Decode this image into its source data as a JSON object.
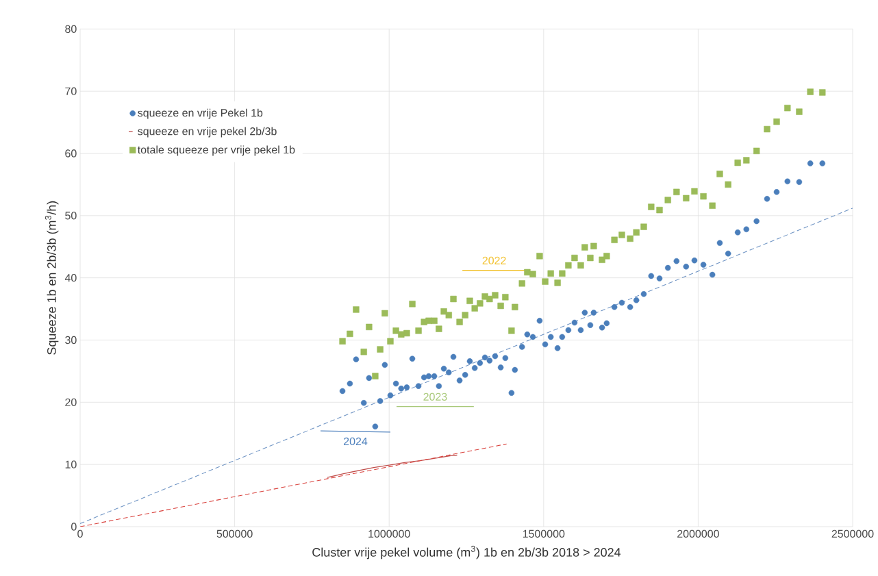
{
  "chart_data": {
    "type": "scatter",
    "xlabel": "Cluster vrije pekel volume (m$^{3}$) 1b en 2b/3b 2018 > 2024",
    "ylabel": "Squeeze 1b en 2b/3b (m$^{3}$/h)",
    "xlim": [
      0,
      2500000
    ],
    "xticks": [
      0,
      500000,
      1000000,
      1500000,
      2000000,
      2500000
    ],
    "ylim": [
      0,
      80
    ],
    "yticks": [
      0,
      10,
      20,
      30,
      40,
      50,
      60,
      70,
      80
    ],
    "grid": true,
    "legend": "top left",
    "series": [
      {
        "name": "squeeze en vrije Pekel 1b",
        "marker": "circle",
        "color": "#4a7ebb",
        "x": [
          849000,
          873000,
          893000,
          918000,
          935000,
          955000,
          971000,
          986000,
          1004000,
          1022000,
          1039000,
          1057000,
          1075000,
          1095000,
          1113000,
          1128000,
          1146000,
          1161000,
          1177000,
          1193000,
          1208000,
          1228000,
          1246000,
          1261000,
          1277000,
          1294000,
          1310000,
          1325000,
          1343000,
          1361000,
          1376000,
          1396000,
          1407000,
          1430000,
          1447000,
          1465000,
          1487000,
          1505000,
          1523000,
          1545000,
          1560000,
          1580000,
          1600000,
          1620000,
          1633000,
          1651000,
          1662000,
          1689000,
          1704000,
          1729000,
          1753000,
          1780000,
          1800000,
          1824000,
          1848000,
          1875000,
          1902000,
          1930000,
          1961000,
          1988000,
          2017000,
          2046000,
          2070000,
          2097000,
          2128000,
          2156000,
          2189000,
          2223000,
          2254000,
          2289000,
          2327000,
          2363000,
          2402000
        ],
        "values": [
          21.8,
          23.0,
          26.9,
          19.9,
          23.9,
          16.1,
          20.2,
          26.0,
          21.1,
          23.0,
          22.2,
          22.4,
          27.0,
          22.6,
          24.0,
          24.2,
          24.2,
          22.6,
          25.4,
          24.8,
          27.3,
          23.5,
          24.4,
          26.6,
          25.5,
          26.3,
          27.2,
          26.7,
          27.4,
          25.6,
          27.1,
          21.5,
          25.2,
          28.9,
          30.9,
          30.5,
          33.1,
          29.3,
          30.5,
          28.7,
          30.5,
          31.6,
          32.8,
          31.6,
          34.4,
          32.4,
          34.4,
          32.0,
          32.7,
          35.3,
          36.0,
          35.3,
          36.4,
          37.4,
          40.3,
          39.9,
          41.6,
          42.7,
          41.8,
          42.8,
          42.1,
          40.5,
          45.6,
          43.9,
          47.3,
          47.8,
          49.1,
          52.7,
          53.8,
          55.5,
          55.4,
          58.4,
          58.4
        ]
      },
      {
        "name": "squeeze en vrije pekel 2b/3b",
        "type": "line",
        "marker": "none",
        "line_style": "solid",
        "color": "#c0504d",
        "x": [
          800000,
          850000,
          900000,
          950000,
          1000000,
          1050000,
          1100000,
          1150000,
          1200000,
          1220000
        ],
        "values": [
          7.9,
          8.5,
          9.0,
          9.5,
          9.9,
          10.3,
          10.6,
          11.0,
          11.4,
          11.5
        ]
      },
      {
        "name": "totale squeeze per vrije pekel 1b",
        "marker": "square",
        "color": "#9bbb59",
        "x": [
          849000,
          873000,
          893000,
          918000,
          935000,
          955000,
          971000,
          986000,
          1004000,
          1022000,
          1039000,
          1057000,
          1075000,
          1095000,
          1113000,
          1128000,
          1146000,
          1161000,
          1177000,
          1193000,
          1208000,
          1228000,
          1246000,
          1261000,
          1277000,
          1294000,
          1310000,
          1325000,
          1343000,
          1361000,
          1376000,
          1396000,
          1407000,
          1430000,
          1447000,
          1465000,
          1487000,
          1505000,
          1523000,
          1545000,
          1560000,
          1580000,
          1600000,
          1620000,
          1633000,
          1651000,
          1662000,
          1689000,
          1704000,
          1729000,
          1753000,
          1780000,
          1800000,
          1824000,
          1848000,
          1875000,
          1902000,
          1930000,
          1961000,
          1988000,
          2017000,
          2046000,
          2070000,
          2097000,
          2128000,
          2156000,
          2189000,
          2223000,
          2254000,
          2289000,
          2327000,
          2363000,
          2402000
        ],
        "values": [
          29.8,
          31.0,
          34.9,
          28.1,
          32.1,
          24.2,
          28.5,
          34.3,
          29.8,
          31.5,
          30.9,
          31.1,
          35.8,
          31.5,
          32.9,
          33.1,
          33.1,
          31.8,
          34.6,
          34.0,
          36.6,
          32.9,
          34.0,
          36.3,
          35.1,
          35.9,
          37.0,
          36.6,
          37.2,
          35.5,
          36.9,
          31.5,
          35.3,
          39.1,
          40.9,
          40.6,
          43.5,
          39.4,
          40.7,
          39.2,
          40.7,
          42.0,
          43.2,
          42.0,
          44.9,
          43.2,
          45.1,
          42.9,
          43.5,
          46.1,
          46.9,
          46.3,
          47.3,
          48.2,
          51.4,
          50.9,
          52.5,
          53.8,
          52.8,
          53.9,
          53.1,
          51.6,
          56.7,
          55.0,
          58.5,
          58.9,
          60.4,
          63.9,
          65.1,
          67.3,
          66.7,
          69.9,
          69.8
        ]
      },
      {
        "type": "line",
        "marker": "none",
        "line_style": "dashed",
        "color": "#6f94c4",
        "x": [
          0,
          2500000
        ],
        "values": [
          0.5,
          51.2
        ]
      },
      {
        "type": "line",
        "marker": "none",
        "line_style": "dashed",
        "color": "#d9413c",
        "x": [
          0,
          1380000
        ],
        "values": [
          0,
          13.3
        ]
      },
      {
        "type": "line",
        "marker": "none",
        "line_style": "solid",
        "color": "#f2c12e",
        "x": [
          1237000,
          1443000
        ],
        "values": [
          41.2,
          41.2
        ]
      },
      {
        "type": "line",
        "marker": "none",
        "line_style": "solid",
        "color": "#a9c97a",
        "x": [
          1024000,
          1274000
        ],
        "values": [
          19.3,
          19.3
        ]
      },
      {
        "type": "line",
        "marker": "none",
        "line_style": "solid",
        "color": "#4f81bd",
        "x": [
          778000,
          1004000
        ],
        "values": [
          15.4,
          15.2
        ]
      }
    ],
    "annotations": [
      "2022",
      "2023",
      "2024"
    ]
  }
}
